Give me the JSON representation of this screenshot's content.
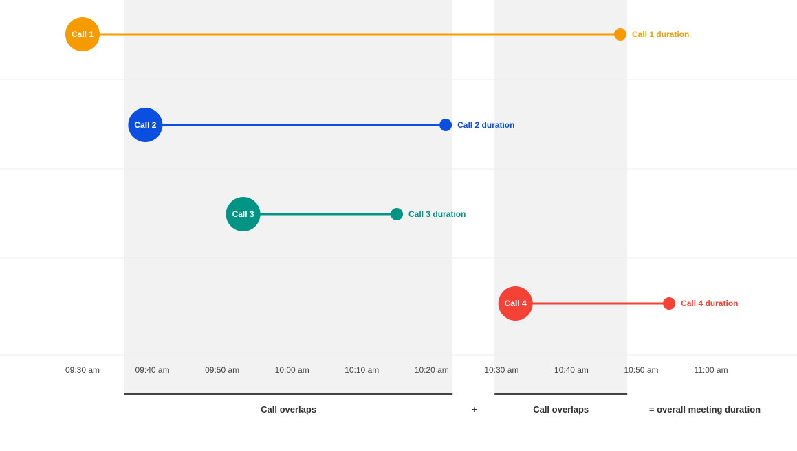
{
  "chart_data": {
    "type": "timeline",
    "x_ticks": [
      "09:30 am",
      "09:40 am",
      "09:50 am",
      "10:00 am",
      "10:10 am",
      "10:20 am",
      "10:30 am",
      "10:40 am",
      "10:50 am",
      "11:00 am"
    ],
    "calls": [
      {
        "label": "Call 1",
        "duration_label": "Call 1 duration",
        "start": "09:30",
        "end": "10:47",
        "color": "#F59B00"
      },
      {
        "label": "Call 2",
        "duration_label": "Call 2 duration",
        "start": "09:39",
        "end": "10:22",
        "color": "#0B4FE0"
      },
      {
        "label": "Call 3",
        "duration_label": "Call 3 duration",
        "start": "09:53",
        "end": "10:15",
        "color": "#009485"
      },
      {
        "label": "Call 4",
        "duration_label": "Call 4 duration",
        "start": "10:32",
        "end": "10:54",
        "color": "#F44336"
      }
    ],
    "overlaps": [
      {
        "start": "09:36",
        "end": "10:23",
        "label": "Call overlaps"
      },
      {
        "start": "10:29",
        "end": "10:48",
        "label": "Call overlaps"
      }
    ],
    "plus_label": "+",
    "result_label": "= overall meeting duration",
    "grid": true
  }
}
